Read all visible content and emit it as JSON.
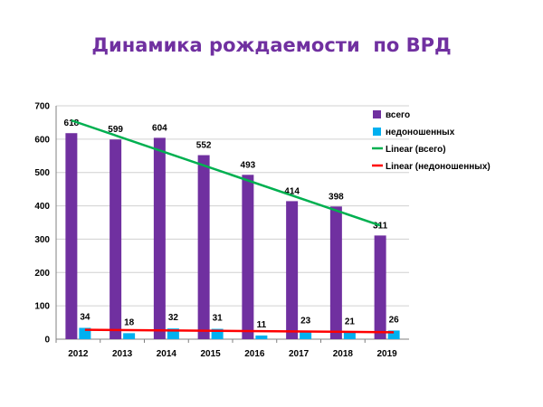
{
  "chart_data": {
    "type": "bar",
    "title": "Динамика рождаемости  по ВРД",
    "categories": [
      "2012",
      "2013",
      "2014",
      "2015",
      "2016",
      "2017",
      "2018",
      "2019"
    ],
    "series": [
      {
        "name": "всего",
        "values": [
          618,
          599,
          604,
          552,
          493,
          414,
          398,
          311
        ],
        "color": "#7030A0"
      },
      {
        "name": "недоношенных",
        "values": [
          34,
          18,
          32,
          31,
          11,
          23,
          21,
          26
        ],
        "color": "#00B0F0"
      }
    ],
    "trendlines": [
      {
        "name": "Linear (всего)",
        "of": "всего",
        "color": "#00B050"
      },
      {
        "name": "Linear (недоношенных)",
        "of": "недоношенных",
        "color": "#FF0000"
      }
    ],
    "ylim": [
      0,
      700
    ],
    "yticks": [
      0,
      100,
      200,
      300,
      400,
      500,
      600,
      700
    ],
    "grid": true,
    "legend": "top-right"
  }
}
